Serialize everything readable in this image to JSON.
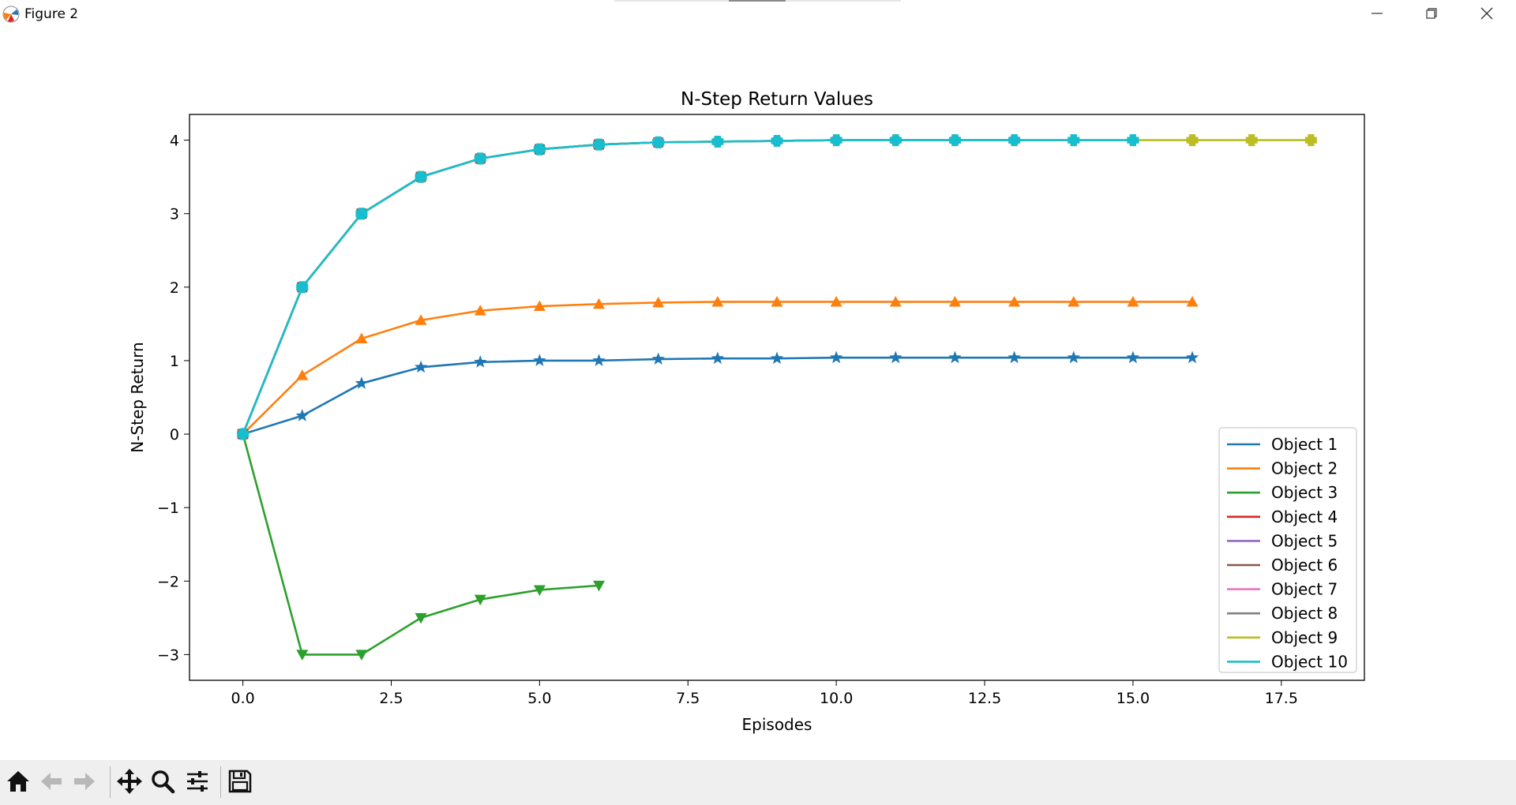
{
  "window": {
    "title": "Figure 2",
    "controls": [
      "minimize-icon",
      "maximize-icon",
      "close-icon"
    ]
  },
  "toolbar": {
    "buttons": [
      "home-icon",
      "back-icon",
      "forward-icon",
      "pan-icon",
      "zoom-icon",
      "configure-subplots-icon",
      "save-icon"
    ]
  },
  "chart_data": {
    "type": "line",
    "title": "N-Step Return Values",
    "xlabel": "Episodes",
    "ylabel": "N-Step Return",
    "xlim": [
      -0.9,
      18.9
    ],
    "ylim": [
      -3.35,
      4.35
    ],
    "xticks": [
      "0.0",
      "2.5",
      "5.0",
      "7.5",
      "10.0",
      "12.5",
      "15.0",
      "17.5"
    ],
    "xtick_values": [
      0,
      2.5,
      5,
      7.5,
      10,
      12.5,
      15,
      17.5
    ],
    "yticks": [
      "4",
      "3",
      "2",
      "1",
      "0",
      "−1",
      "−2",
      "−3"
    ],
    "ytick_values": [
      4,
      3,
      2,
      1,
      0,
      -1,
      -2,
      -3
    ],
    "grid": false,
    "legend_position": "lower-right",
    "series": [
      {
        "name": "Object 1",
        "color": "#1f77b4",
        "marker": "star",
        "x": [
          0,
          1,
          2,
          3,
          4,
          5,
          6,
          7,
          8,
          9,
          10,
          11,
          12,
          13,
          14,
          15,
          16
        ],
        "y": [
          0,
          0.25,
          0.69,
          0.91,
          0.98,
          1.0,
          1.0,
          1.02,
          1.03,
          1.03,
          1.04,
          1.04,
          1.04,
          1.04,
          1.04,
          1.04,
          1.04
        ]
      },
      {
        "name": "Object 2",
        "color": "#ff7f0e",
        "marker": "triangle-up",
        "x": [
          0,
          1,
          2,
          3,
          4,
          5,
          6,
          7,
          8,
          9,
          10,
          11,
          12,
          13,
          14,
          15,
          16
        ],
        "y": [
          0,
          0.8,
          1.3,
          1.55,
          1.68,
          1.74,
          1.77,
          1.79,
          1.8,
          1.8,
          1.8,
          1.8,
          1.8,
          1.8,
          1.8,
          1.8,
          1.8
        ]
      },
      {
        "name": "Object 3",
        "color": "#2ca02c",
        "marker": "triangle-down",
        "x": [
          0,
          1,
          2,
          3,
          4,
          5,
          6
        ],
        "y": [
          0,
          -3.0,
          -3.0,
          -2.5,
          -2.25,
          -2.12,
          -2.06
        ]
      },
      {
        "name": "Object 4",
        "color": "#d62728",
        "marker": "square",
        "x": [
          0,
          1,
          2,
          3,
          4,
          5,
          6,
          7
        ],
        "y": [
          0,
          2.0,
          3.0,
          3.5,
          3.75,
          3.875,
          3.94,
          3.97
        ]
      },
      {
        "name": "Object 5",
        "color": "#9467bd",
        "marker": "square",
        "x": [
          0,
          1,
          2,
          3,
          4,
          5,
          6,
          7
        ],
        "y": [
          0,
          2.0,
          3.0,
          3.5,
          3.75,
          3.875,
          3.94,
          3.97
        ]
      },
      {
        "name": "Object 6",
        "color": "#8c564b",
        "marker": "square",
        "x": [
          0,
          1,
          2,
          3,
          4,
          5,
          6
        ],
        "y": [
          0,
          2.0,
          3.0,
          3.5,
          3.75,
          3.875,
          3.94
        ]
      },
      {
        "name": "Object 7",
        "color": "#e377c2",
        "marker": "circle",
        "x": [
          0,
          1,
          2,
          3,
          4,
          5,
          6,
          7,
          8,
          9,
          10,
          11,
          12,
          13
        ],
        "y": [
          0,
          2.0,
          3.0,
          3.5,
          3.75,
          3.875,
          3.94,
          3.97,
          3.98,
          3.99,
          4.0,
          4.0,
          4.0,
          4.0
        ]
      },
      {
        "name": "Object 8",
        "color": "#7f7f7f",
        "marker": "circle",
        "x": [
          0,
          1,
          2,
          3,
          4,
          5,
          6,
          7,
          8,
          9,
          10,
          11,
          12,
          13
        ],
        "y": [
          0,
          2.0,
          3.0,
          3.5,
          3.75,
          3.875,
          3.94,
          3.97,
          3.98,
          3.99,
          4.0,
          4.0,
          4.0,
          4.0
        ]
      },
      {
        "name": "Object 9",
        "color": "#bcbd22",
        "marker": "plus",
        "x": [
          0,
          1,
          2,
          3,
          4,
          5,
          6,
          7,
          8,
          9,
          10,
          11,
          12,
          13,
          14,
          15,
          16,
          17,
          18
        ],
        "y": [
          0,
          2.0,
          3.0,
          3.5,
          3.75,
          3.875,
          3.94,
          3.97,
          3.98,
          3.99,
          4.0,
          4.0,
          4.0,
          4.0,
          4.0,
          4.0,
          4.0,
          4.0,
          4.0
        ]
      },
      {
        "name": "Object 10",
        "color": "#17becf",
        "marker": "plus",
        "x": [
          0,
          1,
          2,
          3,
          4,
          5,
          6,
          7,
          8,
          9,
          10,
          11,
          12,
          13,
          14,
          15
        ],
        "y": [
          0,
          2.0,
          3.0,
          3.5,
          3.75,
          3.875,
          3.94,
          3.97,
          3.98,
          3.99,
          4.0,
          4.0,
          4.0,
          4.0,
          4.0,
          4.0
        ]
      }
    ]
  }
}
